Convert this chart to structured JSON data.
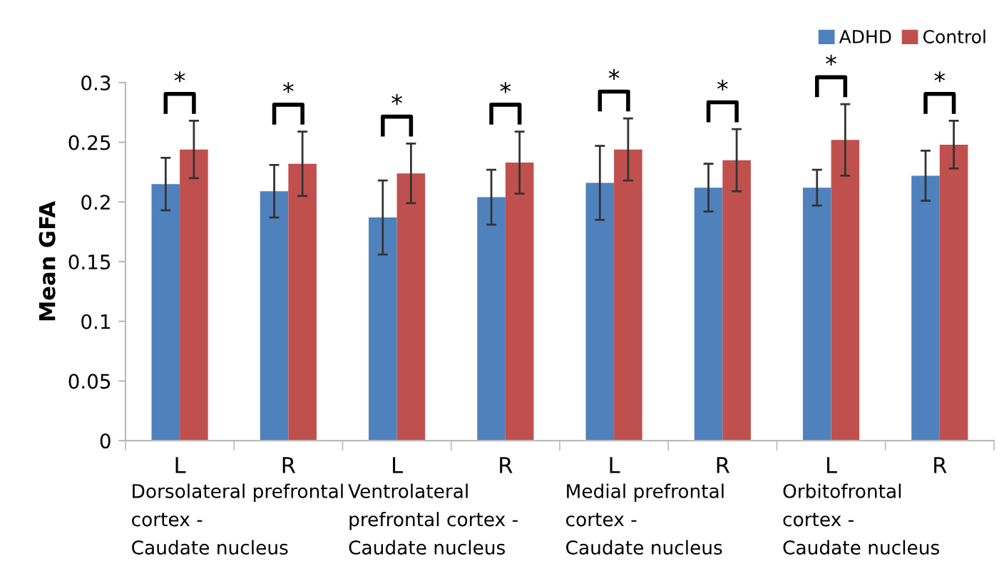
{
  "chart_data": {
    "type": "bar",
    "ylabel": "Mean GFA",
    "categories": [
      "L",
      "R",
      "L",
      "R",
      "L",
      "R",
      "L",
      "R"
    ],
    "series": [
      {
        "name": "ADHD",
        "color": "#4f81bd",
        "values": [
          0.215,
          0.209,
          0.187,
          0.204,
          0.216,
          0.212,
          0.212,
          0.222
        ],
        "errors": [
          0.022,
          0.022,
          0.031,
          0.023,
          0.031,
          0.02,
          0.015,
          0.021
        ]
      },
      {
        "name": "Control",
        "color": "#c0504d",
        "values": [
          0.244,
          0.232,
          0.224,
          0.233,
          0.244,
          0.235,
          0.252,
          0.248
        ],
        "errors": [
          0.024,
          0.027,
          0.025,
          0.026,
          0.026,
          0.026,
          0.03,
          0.02
        ]
      }
    ],
    "ylim": [
      0,
      0.3
    ],
    "yticks": [
      0,
      0.05,
      0.1,
      0.15,
      0.2,
      0.25,
      0.3
    ],
    "grid": false,
    "legend": "top right",
    "annotations": [
      "*",
      "*",
      "*",
      "*",
      "*",
      "*",
      "*",
      "*",
      "Dorsolateral prefrontal\ncortex -\nCaudate nucleus",
      "Ventrolateral\nprefrontal cortex -\nCaudate nucleus",
      "Medial prefrontal\ncortex -\nCaudate nucleus",
      "Orbitofrontal\ncortex -\nCaudate nucleus"
    ]
  }
}
